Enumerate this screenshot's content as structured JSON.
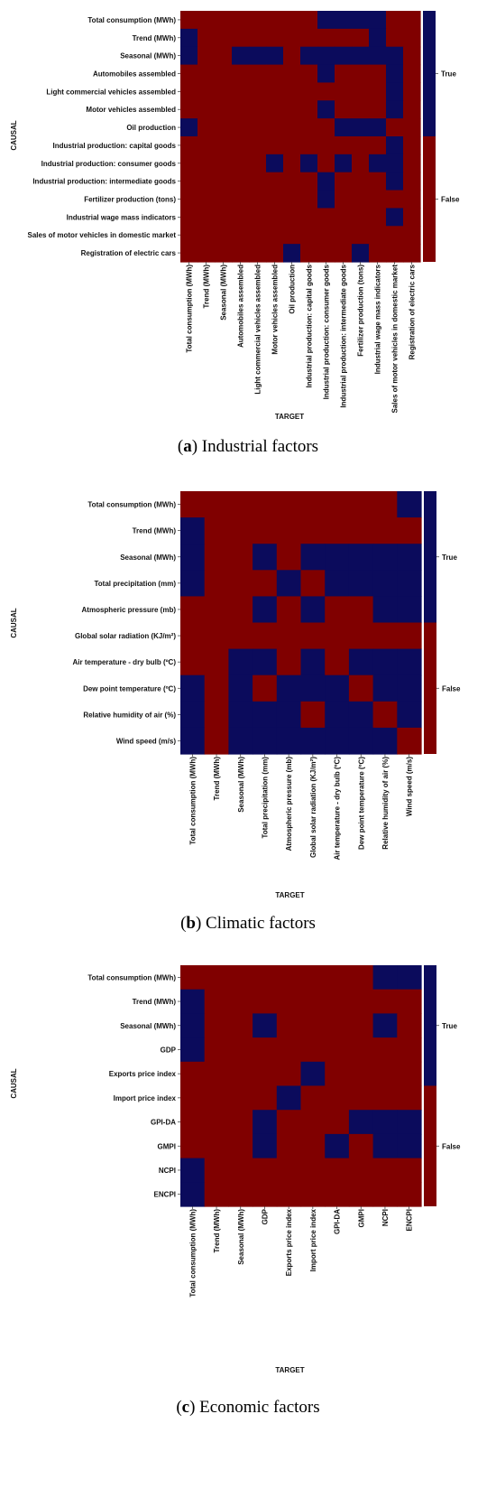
{
  "colors": {
    "true": "#0b0b5c",
    "false": "#800000",
    "divider": "#ffffff"
  },
  "chart_data": [
    {
      "type": "heatmap",
      "caption_letter": "a",
      "caption_text": " Industrial factors",
      "xlabel": "TARGET",
      "ylabel": "CAUSAL",
      "legend": [
        "True",
        "False"
      ],
      "labels": [
        "Total consumption (MWh)",
        "Trend (MWh)",
        "Seasonal (MWh)",
        "Automobiles assembled",
        "Light commercial vehicles assembled",
        "Motor vehicles assembled",
        "Oil production",
        "Industrial production: capital goods",
        "Industrial production: consumer goods",
        "Industrial production: intermediate goods",
        "Fertilizer production (tons)",
        "Industrial wage mass indicators",
        "Sales of motor vehicles in domestic market",
        "Registration of electric cars"
      ],
      "matrix": [
        [
          0,
          0,
          0,
          0,
          0,
          0,
          0,
          0,
          1,
          1,
          1,
          1,
          0,
          0
        ],
        [
          1,
          0,
          0,
          0,
          0,
          0,
          0,
          0,
          0,
          0,
          0,
          1,
          0,
          0
        ],
        [
          1,
          0,
          0,
          1,
          1,
          1,
          0,
          1,
          1,
          1,
          1,
          1,
          1,
          0
        ],
        [
          0,
          0,
          0,
          0,
          0,
          0,
          0,
          0,
          1,
          0,
          0,
          0,
          1,
          0
        ],
        [
          0,
          0,
          0,
          0,
          0,
          0,
          0,
          0,
          0,
          0,
          0,
          0,
          1,
          0
        ],
        [
          0,
          0,
          0,
          0,
          0,
          0,
          0,
          0,
          1,
          0,
          0,
          0,
          1,
          0
        ],
        [
          1,
          0,
          0,
          0,
          0,
          0,
          0,
          0,
          0,
          1,
          1,
          1,
          0,
          0
        ],
        [
          0,
          0,
          0,
          0,
          0,
          0,
          0,
          0,
          0,
          0,
          0,
          0,
          1,
          0
        ],
        [
          0,
          0,
          0,
          0,
          0,
          1,
          0,
          1,
          0,
          1,
          0,
          1,
          1,
          0
        ],
        [
          0,
          0,
          0,
          0,
          0,
          0,
          0,
          0,
          1,
          0,
          0,
          0,
          1,
          0
        ],
        [
          0,
          0,
          0,
          0,
          0,
          0,
          0,
          0,
          1,
          0,
          0,
          0,
          0,
          0
        ],
        [
          0,
          0,
          0,
          0,
          0,
          0,
          0,
          0,
          0,
          0,
          0,
          0,
          1,
          0
        ],
        [
          0,
          0,
          0,
          0,
          0,
          0,
          0,
          0,
          0,
          0,
          0,
          0,
          0,
          0
        ],
        [
          0,
          0,
          0,
          0,
          0,
          0,
          1,
          0,
          0,
          0,
          1,
          0,
          0,
          0
        ]
      ]
    },
    {
      "type": "heatmap",
      "caption_letter": "b",
      "caption_text": " Climatic factors",
      "xlabel": "TARGET",
      "ylabel": "CAUSAL",
      "legend": [
        "True",
        "False"
      ],
      "labels": [
        "Total consumption (MWh)",
        "Trend (MWh)",
        "Seasonal (MWh)",
        "Total precipitation (mm)",
        "Atmospheric pressure (mb)",
        "Global solar radiation (KJ/m²)",
        "Air temperature - dry bulb (ºC)",
        "Dew point temperature (ºC)",
        "Relative humidity of air (%)",
        "Wind speed (m/s)"
      ],
      "matrix": [
        [
          0,
          0,
          0,
          0,
          0,
          0,
          0,
          0,
          0,
          1
        ],
        [
          1,
          0,
          0,
          0,
          0,
          0,
          0,
          0,
          0,
          0
        ],
        [
          1,
          0,
          0,
          1,
          0,
          1,
          1,
          1,
          1,
          1
        ],
        [
          1,
          0,
          0,
          0,
          1,
          0,
          1,
          1,
          1,
          1
        ],
        [
          0,
          0,
          0,
          1,
          0,
          1,
          0,
          0,
          1,
          1
        ],
        [
          0,
          0,
          0,
          0,
          0,
          0,
          0,
          0,
          0,
          0
        ],
        [
          0,
          0,
          1,
          1,
          0,
          1,
          0,
          1,
          1,
          1
        ],
        [
          1,
          0,
          1,
          0,
          1,
          1,
          1,
          0,
          1,
          1
        ],
        [
          1,
          0,
          1,
          1,
          1,
          0,
          1,
          1,
          0,
          1
        ],
        [
          1,
          0,
          1,
          1,
          1,
          1,
          1,
          1,
          1,
          0
        ]
      ]
    },
    {
      "type": "heatmap",
      "caption_letter": "c",
      "caption_text": " Economic factors",
      "xlabel": "TARGET",
      "ylabel": "CAUSAL",
      "legend": [
        "True",
        "False"
      ],
      "labels": [
        "Total consumption (MWh)",
        "Trend (MWh)",
        "Seasonal (MWh)",
        "GDP",
        "Exports price index",
        "Import price index",
        "GPI-DA",
        "GMPI",
        "NCPI",
        "ENCPI"
      ],
      "matrix": [
        [
          0,
          0,
          0,
          0,
          0,
          0,
          0,
          0,
          1,
          1
        ],
        [
          1,
          0,
          0,
          0,
          0,
          0,
          0,
          0,
          0,
          0
        ],
        [
          1,
          0,
          0,
          1,
          0,
          0,
          0,
          0,
          1,
          0
        ],
        [
          1,
          0,
          0,
          0,
          0,
          0,
          0,
          0,
          0,
          0
        ],
        [
          0,
          0,
          0,
          0,
          0,
          1,
          0,
          0,
          0,
          0
        ],
        [
          0,
          0,
          0,
          0,
          1,
          0,
          0,
          0,
          0,
          0
        ],
        [
          0,
          0,
          0,
          1,
          0,
          0,
          0,
          1,
          1,
          1
        ],
        [
          0,
          0,
          0,
          1,
          0,
          0,
          1,
          0,
          1,
          1
        ],
        [
          1,
          0,
          0,
          0,
          0,
          0,
          0,
          0,
          0,
          0
        ],
        [
          1,
          0,
          0,
          0,
          0,
          0,
          0,
          0,
          0,
          0
        ]
      ]
    }
  ]
}
